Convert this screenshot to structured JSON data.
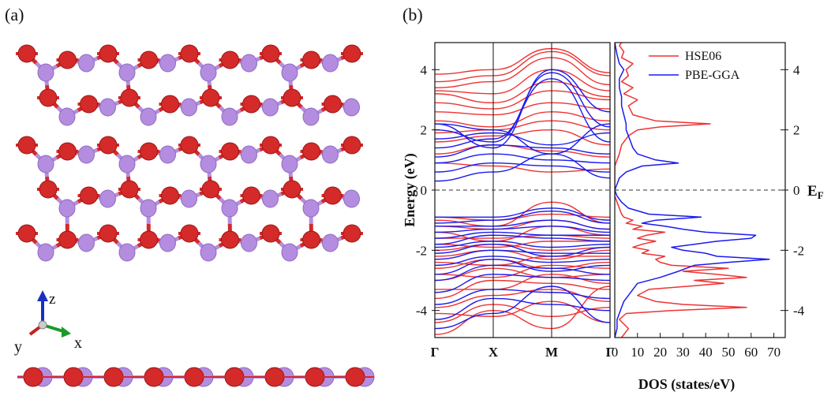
{
  "panel_labels": {
    "a": "(a)",
    "b": "(b)"
  },
  "axes_triad": {
    "z": "z",
    "y": "y",
    "x": "x"
  },
  "colors": {
    "hse": "#ee3333",
    "pbe": "#1a1aee",
    "atom_red": "#d42a2a",
    "atom_purple": "#b48de0"
  },
  "chart_data": [
    {
      "type": "line",
      "title": "",
      "xlabel": "",
      "ylabel": "Energy (eV)",
      "ylim": [
        -4.9,
        4.9
      ],
      "yticks": [
        "-4",
        "-2",
        "0",
        "2",
        "4"
      ],
      "ytick_values": [
        -4,
        -2,
        0,
        2,
        4
      ],
      "kpoints": [
        "Γ",
        "X",
        "M",
        "Γ"
      ],
      "kpoint_positions": [
        0,
        1,
        2,
        3
      ],
      "fermi_level": 0,
      "fermi_label": "E",
      "fermi_sub": "F",
      "series": [
        {
          "name": "HSE06",
          "color": "#ee3333",
          "bands": [
            [
              -4.8,
              -4.0,
              -4.6,
              -3.2
            ],
            [
              -4.4,
              -3.8,
              -4.2,
              -3.9
            ],
            [
              -4.1,
              -4.2,
              -3.7,
              -4.4
            ],
            [
              -3.9,
              -3.5,
              -3.3,
              -3.7
            ],
            [
              -3.6,
              -3.0,
              -3.1,
              -3.3
            ],
            [
              -3.3,
              -3.3,
              -2.8,
              -3.1
            ],
            [
              -3.0,
              -2.6,
              -2.9,
              -2.8
            ],
            [
              -2.8,
              -2.9,
              -2.5,
              -2.6
            ],
            [
              -2.6,
              -2.3,
              -2.6,
              -2.4
            ],
            [
              -2.4,
              -2.5,
              -2.2,
              -2.2
            ],
            [
              -2.2,
              -2.0,
              -2.3,
              -2.0
            ],
            [
              -2.0,
              -1.8,
              -2.0,
              -1.9
            ],
            [
              -1.8,
              -1.9,
              -1.7,
              -1.7
            ],
            [
              -1.6,
              -1.6,
              -1.5,
              -1.6
            ],
            [
              -1.4,
              -1.7,
              -1.2,
              -1.5
            ],
            [
              -1.2,
              -1.3,
              -1.0,
              -1.3
            ],
            [
              -1.0,
              -1.2,
              -0.4,
              -1.1
            ],
            [
              -0.9,
              -1.0,
              -0.8,
              -0.9
            ],
            [
              0.9,
              0.8,
              0.6,
              0.7
            ],
            [
              1.2,
              1.5,
              1.3,
              1.1
            ],
            [
              1.6,
              1.8,
              2.0,
              1.5
            ],
            [
              1.9,
              2.0,
              2.3,
              2.0
            ],
            [
              2.3,
              2.1,
              2.6,
              2.3
            ],
            [
              2.6,
              2.5,
              2.9,
              2.7
            ],
            [
              2.9,
              2.7,
              3.3,
              3.0
            ],
            [
              3.2,
              2.9,
              3.6,
              3.1
            ],
            [
              3.3,
              3.2,
              4.0,
              3.3
            ],
            [
              3.4,
              3.6,
              4.4,
              3.5
            ],
            [
              3.6,
              3.8,
              4.6,
              3.8
            ],
            [
              3.85,
              4.0,
              4.7,
              3.9
            ]
          ]
        },
        {
          "name": "PBE-GGA",
          "color": "#1a1aee",
          "bands": [
            [
              -4.6,
              -4.1,
              -3.2,
              -4.4
            ],
            [
              -4.3,
              -3.6,
              -3.8,
              -4.0
            ],
            [
              -3.8,
              -3.3,
              -3.4,
              -3.6
            ],
            [
              -3.4,
              -2.8,
              -2.9,
              -3.0
            ],
            [
              -3.0,
              -2.5,
              -2.6,
              -2.8
            ],
            [
              -2.8,
              -2.3,
              -2.7,
              -2.5
            ],
            [
              -2.5,
              -2.2,
              -2.4,
              -2.3
            ],
            [
              -2.3,
              -2.0,
              -2.1,
              -2.1
            ],
            [
              -2.1,
              -1.8,
              -2.2,
              -1.9
            ],
            [
              -1.9,
              -1.7,
              -1.9,
              -1.8
            ],
            [
              -1.8,
              -1.5,
              -1.6,
              -1.7
            ],
            [
              -1.6,
              -1.4,
              -1.5,
              -1.5
            ],
            [
              -1.4,
              -1.3,
              -1.2,
              -1.4
            ],
            [
              -1.2,
              -1.2,
              -1.0,
              -1.3
            ],
            [
              -1.1,
              -1.0,
              -0.7,
              -1.1
            ],
            [
              -0.9,
              -0.9,
              -0.6,
              -1.0
            ],
            [
              0.3,
              0.6,
              1.2,
              0.4
            ],
            [
              0.6,
              0.9,
              0.8,
              0.6
            ],
            [
              0.9,
              1.2,
              1.0,
              0.9
            ],
            [
              1.1,
              1.5,
              1.4,
              1.2
            ],
            [
              1.4,
              1.7,
              3.7,
              1.6
            ],
            [
              1.7,
              1.9,
              1.5,
              1.9
            ],
            [
              2.0,
              1.6,
              3.9,
              2.1
            ],
            [
              2.2,
              2.0,
              1.2,
              2.2
            ],
            [
              2.2,
              1.4,
              4.0,
              2.6
            ]
          ]
        }
      ]
    },
    {
      "type": "line",
      "title": "",
      "xlabel": "DOS (states/eV)",
      "ylabel": "",
      "xlim": [
        0,
        75
      ],
      "ylim": [
        -4.9,
        4.9
      ],
      "xticks": [
        "0",
        "10",
        "20",
        "30",
        "40",
        "50",
        "60",
        "70"
      ],
      "xtick_values": [
        0,
        10,
        20,
        30,
        40,
        50,
        60,
        70
      ],
      "yticks": [
        "-4",
        "-2",
        "0",
        "2",
        "4"
      ],
      "ytick_values": [
        -4,
        -2,
        0,
        2,
        4
      ],
      "legend_position": "top-right",
      "series": [
        {
          "name": "HSE06",
          "color": "#ee3333",
          "energy": [
            -4.9,
            -4.6,
            -4.3,
            -4.1,
            -4.0,
            -3.9,
            -3.8,
            -3.7,
            -3.5,
            -3.3,
            -3.1,
            -3.0,
            -2.9,
            -2.8,
            -2.7,
            -2.6,
            -2.5,
            -2.4,
            -2.3,
            -2.2,
            -2.1,
            -2.0,
            -1.9,
            -1.8,
            -1.7,
            -1.6,
            -1.5,
            -1.4,
            -1.3,
            -1.2,
            -1.1,
            -1.0,
            -0.9,
            -0.8,
            -0.6,
            -0.4,
            -0.2,
            0.0,
            0.3,
            0.6,
            0.8,
            1.0,
            1.2,
            1.5,
            1.8,
            2.0,
            2.1,
            2.2,
            2.3,
            2.5,
            2.8,
            3.0,
            3.2,
            3.4,
            3.6,
            3.8,
            4.0,
            4.2,
            4.4,
            4.6,
            4.8,
            4.9
          ],
          "dos": [
            3,
            6,
            2,
            5,
            25,
            58,
            30,
            18,
            10,
            15,
            48,
            35,
            58,
            45,
            30,
            50,
            25,
            20,
            18,
            22,
            12,
            15,
            8,
            12,
            18,
            10,
            14,
            22,
            8,
            12,
            5,
            8,
            4,
            3,
            2,
            1,
            0,
            0,
            0,
            0,
            0,
            1,
            2,
            3,
            6,
            10,
            20,
            42,
            18,
            8,
            6,
            10,
            4,
            8,
            3,
            6,
            5,
            8,
            3,
            4,
            2,
            3
          ]
        },
        {
          "name": "PBE-GGA",
          "color": "#1a1aee",
          "energy": [
            -4.9,
            -4.6,
            -4.3,
            -4.1,
            -3.9,
            -3.7,
            -3.5,
            -3.3,
            -3.1,
            -2.9,
            -2.7,
            -2.5,
            -2.4,
            -2.3,
            -2.2,
            -2.1,
            -2.0,
            -1.9,
            -1.8,
            -1.7,
            -1.6,
            -1.5,
            -1.4,
            -1.3,
            -1.2,
            -1.1,
            -1.0,
            -0.9,
            -0.8,
            -0.6,
            -0.4,
            -0.2,
            0.0,
            0.2,
            0.4,
            0.6,
            0.8,
            0.9,
            1.0,
            1.2,
            1.4,
            1.6,
            1.8,
            2.0,
            2.2,
            2.5,
            2.8,
            3.1,
            3.4,
            3.7,
            4.0,
            4.2,
            4.5,
            4.9
          ],
          "dos": [
            0,
            1,
            1,
            2,
            3,
            4,
            6,
            8,
            10,
            20,
            28,
            35,
            50,
            68,
            45,
            40,
            30,
            25,
            35,
            45,
            60,
            62,
            40,
            30,
            22,
            12,
            18,
            38,
            15,
            6,
            3,
            1,
            0,
            1,
            2,
            5,
            12,
            28,
            18,
            10,
            8,
            7,
            6,
            5,
            5,
            4,
            3,
            3,
            2,
            2,
            4,
            2,
            1,
            0
          ]
        }
      ]
    }
  ]
}
